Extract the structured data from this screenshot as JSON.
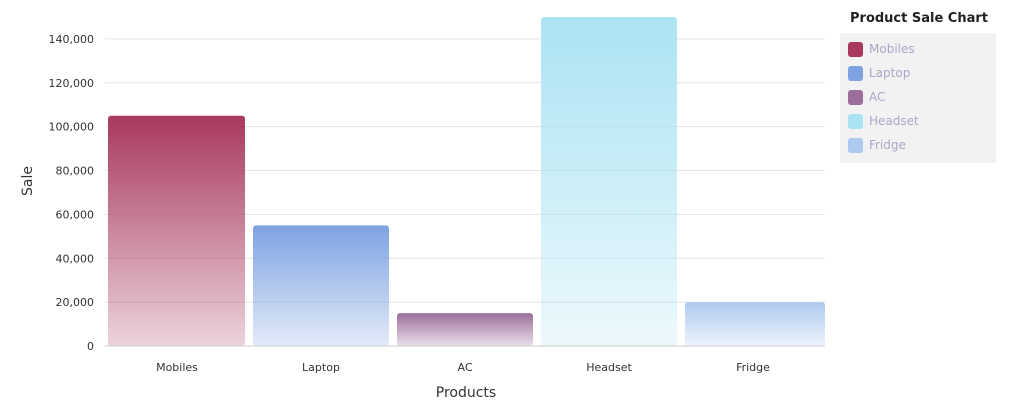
{
  "chart_data": {
    "type": "bar",
    "title": "",
    "xlabel": "Products",
    "ylabel": "Sale",
    "categories": [
      "Mobiles",
      "Laptop",
      "AC",
      "Headset",
      "Fridge"
    ],
    "values": [
      105000,
      55000,
      15000,
      150000,
      20000
    ],
    "colors": [
      "#a8385e",
      "#7ea2e2",
      "#9c6e9c",
      "#abe3f3",
      "#aecaf0"
    ],
    "ylim": [
      0,
      150000
    ],
    "yticks": [
      0,
      20000,
      40000,
      60000,
      80000,
      100000,
      120000,
      140000
    ],
    "ytick_labels": [
      "0",
      "20,000",
      "40,000",
      "60,000",
      "80,000",
      "100,000",
      "120,000",
      "140,000"
    ],
    "grid": true,
    "legend": {
      "title": "Product Sale Chart",
      "position": "right",
      "items": [
        "Mobiles",
        "Laptop",
        "AC",
        "Headset",
        "Fridge"
      ]
    }
  }
}
